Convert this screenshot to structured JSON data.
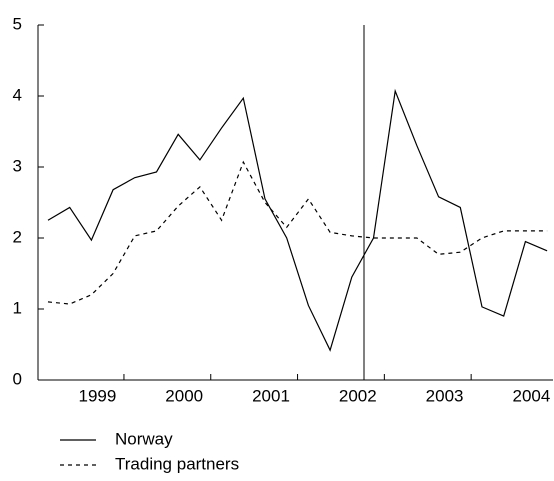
{
  "chart_data": {
    "type": "line",
    "categories": [
      null,
      null,
      "1999",
      null,
      null,
      null,
      "2000",
      null,
      null,
      null,
      "2001",
      null,
      null,
      null,
      "2002",
      null,
      null,
      null,
      "2003",
      null,
      null,
      null,
      "2004",
      null
    ],
    "series": [
      {
        "name": "Norway",
        "color": "#000000",
        "dash": "solid",
        "values": [
          2.25,
          2.43,
          1.97,
          2.68,
          2.85,
          2.93,
          3.46,
          3.1,
          3.55,
          3.97,
          2.55,
          2.0,
          1.05,
          0.42,
          1.45,
          2.0,
          4.07,
          3.3,
          2.58,
          2.43,
          1.03,
          0.9,
          1.95,
          1.82
        ]
      },
      {
        "name": "Trading partners",
        "color": "#000000",
        "dash": "dashed",
        "values": [
          1.1,
          1.07,
          1.2,
          1.5,
          2.03,
          2.1,
          2.45,
          2.72,
          2.25,
          3.07,
          2.5,
          2.15,
          2.55,
          2.08,
          2.03,
          2.0,
          2.0,
          2.0,
          1.77,
          1.8,
          2.0,
          2.1,
          2.1,
          2.1
        ]
      }
    ],
    "ylim": [
      0,
      5
    ],
    "yticks": [
      0,
      1,
      2,
      3,
      4,
      5
    ]
  }
}
